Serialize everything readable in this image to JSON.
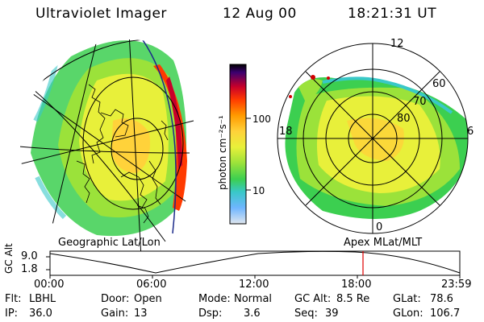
{
  "header": {
    "title": "Ultraviolet Imager",
    "date": "12 Aug 00",
    "time": "18:21:31 UT"
  },
  "colorbar": {
    "unit_label": "photon cm⁻²s⁻¹",
    "ticks": [
      "100",
      "10"
    ],
    "colors": [
      "#000000",
      "#3b0070",
      "#c8002a",
      "#ff3a00",
      "#ff9a00",
      "#ffd23a",
      "#e8f03a",
      "#9be23a",
      "#3ccf50",
      "#39c8c8",
      "#6fb6ff",
      "#dfe6ee"
    ]
  },
  "left_map": {
    "caption": "Geographic Lat/Lon"
  },
  "right_map": {
    "caption": "Apex MLat/MLT",
    "mlt_labels": [
      "12",
      "18",
      "6",
      "0"
    ],
    "lat_labels": [
      "60",
      "70",
      "80"
    ]
  },
  "timeline": {
    "ylabel": "GC Alt",
    "y_ticks": [
      "9.0",
      "1.8"
    ],
    "x_ticks": [
      "00:00",
      "06:00",
      "12:00",
      "18:00",
      "23:59"
    ],
    "marker_color": "#e00000",
    "marker_time": "18:21"
  },
  "status": {
    "row1": [
      {
        "label": "Flt:",
        "value": "LBHL"
      },
      {
        "label": "Door:",
        "value": "Open"
      },
      {
        "label": "Mode:",
        "value": "Normal"
      },
      {
        "label": "GC Alt:",
        "value": "8.5 Re"
      },
      {
        "label": "GLat:",
        "value": "78.6"
      }
    ],
    "row2": [
      {
        "label": "IP:",
        "value": "36.0"
      },
      {
        "label": "Gain:",
        "value": "13"
      },
      {
        "label": "Dsp:",
        "value": "3.6"
      },
      {
        "label": "Seq:",
        "value": "39"
      },
      {
        "label": "GLon:",
        "value": "106.7"
      }
    ]
  }
}
